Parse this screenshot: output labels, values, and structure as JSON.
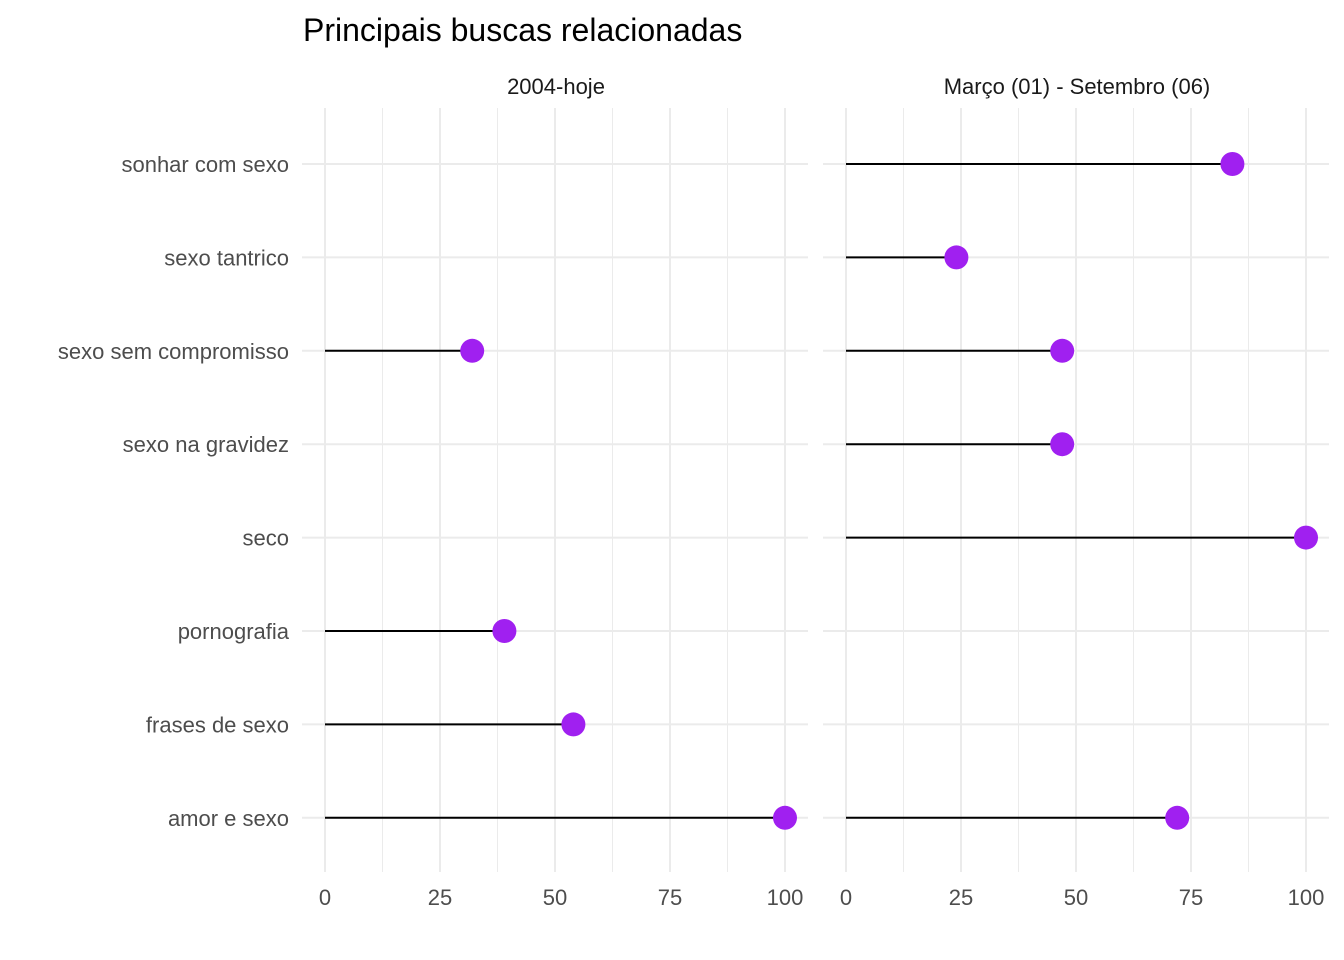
{
  "chart_data": {
    "type": "scatter",
    "title": "Principais buscas relacionadas",
    "xlim": [
      0,
      100
    ],
    "x_ticks": [
      "0",
      "25",
      "50",
      "75",
      "100"
    ],
    "grid": true,
    "categories": [
      "sonhar com sexo",
      "sexo tantrico",
      "sexo sem compromisso",
      "sexo na gravidez",
      "seco",
      "pornografia",
      "frases de sexo",
      "amor e sexo"
    ],
    "point_color": "#A020F0",
    "stem_color": "#000000",
    "panels": [
      {
        "label": "2004-hoje",
        "values": [
          null,
          null,
          32,
          null,
          null,
          39,
          54,
          100
        ]
      },
      {
        "label": "Março (01) - Setembro (06)",
        "values": [
          84,
          24,
          47,
          47,
          100,
          null,
          null,
          72
        ]
      }
    ]
  }
}
